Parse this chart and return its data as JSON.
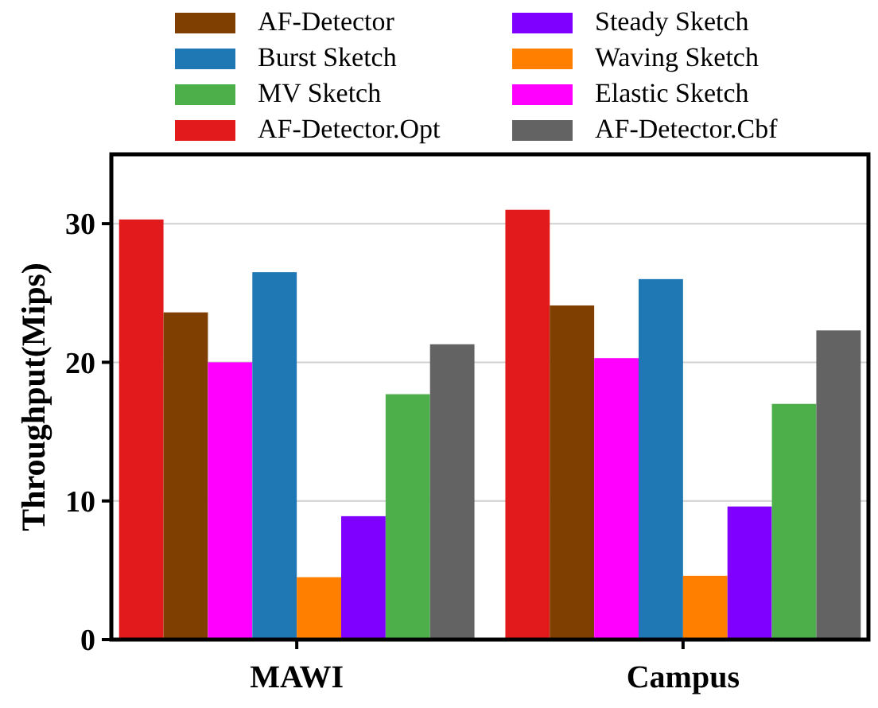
{
  "chart_data": {
    "type": "bar",
    "ylabel": "Throughput(Mips)",
    "categories": [
      "MAWI",
      "Campus"
    ],
    "series": [
      {
        "name": "AF-Detector.Opt",
        "color": "#e31a1c",
        "values": [
          30.3,
          31.0
        ]
      },
      {
        "name": "AF-Detector",
        "color": "#7f3f00",
        "values": [
          23.6,
          24.1
        ]
      },
      {
        "name": "Elastic Sketch",
        "color": "#ff00ff",
        "values": [
          20.0,
          20.3
        ]
      },
      {
        "name": "Burst Sketch",
        "color": "#1f78b4",
        "values": [
          26.5,
          26.0
        ]
      },
      {
        "name": "Waving Sketch",
        "color": "#ff7f00",
        "values": [
          4.5,
          4.6
        ]
      },
      {
        "name": "Steady Sketch",
        "color": "#8000ff",
        "values": [
          8.9,
          9.6
        ]
      },
      {
        "name": "MV Sketch",
        "color": "#4daf4a",
        "values": [
          17.7,
          17.0
        ]
      },
      {
        "name": "AF-Detector.Cbf",
        "color": "#636363",
        "values": [
          21.3,
          22.3
        ]
      }
    ],
    "ylim": [
      0,
      35
    ],
    "yticks": [
      0,
      10,
      20,
      30
    ],
    "grid": "y",
    "legend": "top"
  }
}
